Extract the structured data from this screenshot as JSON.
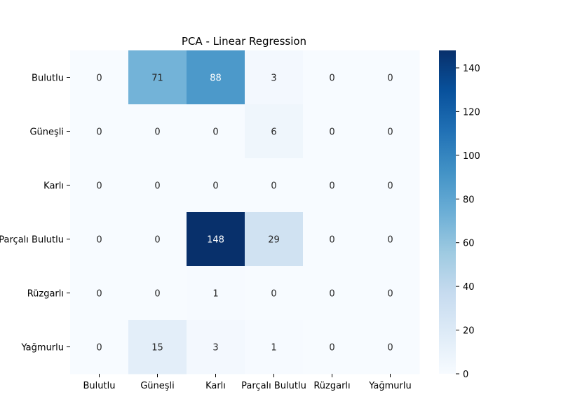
{
  "chart_data": {
    "type": "heatmap",
    "title": "PCA - Linear Regression",
    "xlabel": "",
    "ylabel": "",
    "x_categories": [
      "Bulutlu",
      "Güneşli",
      "Karlı",
      "Parçalı Bulutlu",
      "Rüzgarlı",
      "Yağmurlu"
    ],
    "y_categories": [
      "Bulutlu",
      "Güneşli",
      "Karlı",
      "Parçalı Bulutlu",
      "Rüzgarlı",
      "Yağmurlu"
    ],
    "values": [
      [
        0,
        71,
        88,
        3,
        0,
        0
      ],
      [
        0,
        0,
        0,
        6,
        0,
        0
      ],
      [
        0,
        0,
        0,
        0,
        0,
        0
      ],
      [
        0,
        0,
        148,
        29,
        0,
        0
      ],
      [
        0,
        0,
        1,
        0,
        0,
        0
      ],
      [
        0,
        15,
        3,
        1,
        0,
        0
      ]
    ],
    "colorscale": "Blues",
    "vmin": 0,
    "vmax": 148,
    "colorbar_ticks": [
      "0",
      "20",
      "40",
      "60",
      "80",
      "100",
      "120",
      "140"
    ],
    "annotations": true
  }
}
